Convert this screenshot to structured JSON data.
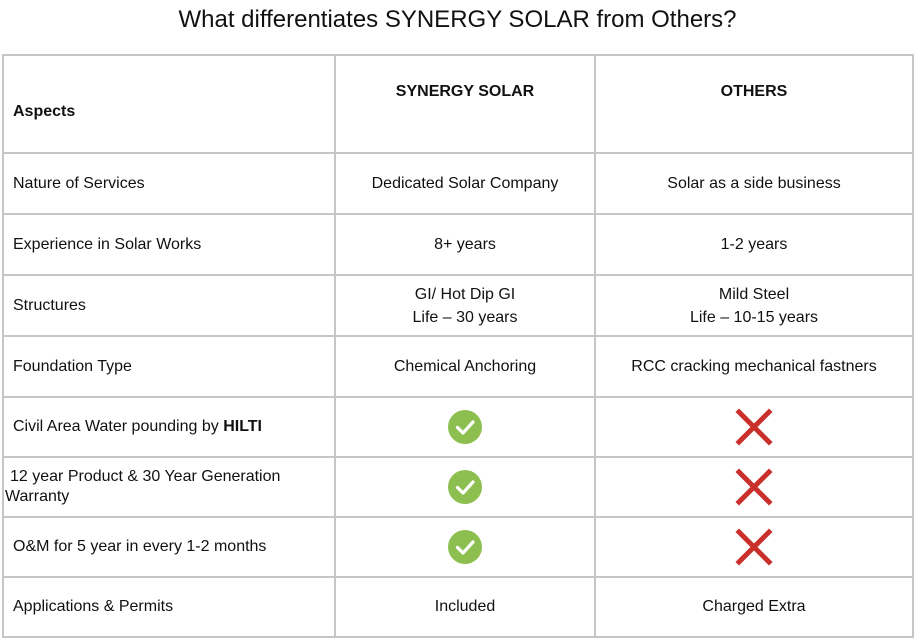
{
  "title": "What differentiates SYNERGY SOLAR from Others?",
  "headers": {
    "aspects": "Aspects",
    "synergy": "SYNERGY SOLAR",
    "others": "OTHERS"
  },
  "rows": [
    {
      "aspect": "Nature of Services",
      "synergy": "Dedicated Solar Company",
      "others": "Solar as a side business"
    },
    {
      "aspect": "Experience in Solar Works",
      "synergy": "8+ years",
      "others": "1-2 years"
    },
    {
      "aspect": "Structures",
      "synergy_line1": "GI/ Hot Dip GI",
      "synergy_line2": "Life – 30 years",
      "others_line1": "Mild Steel",
      "others_line2": "Life – 10-15 years"
    },
    {
      "aspect": "Foundation Type",
      "synergy": "Chemical Anchoring",
      "others": "RCC cracking mechanical fastners"
    },
    {
      "aspect_prefix": "Civil Area Water pounding by ",
      "aspect_bold": "HILTI",
      "synergy_icon": "green-check-icon",
      "others_icon": "red-cross-icon"
    },
    {
      "aspect_line1": "12 year Product & 30 Year Generation",
      "aspect_line2": "Warranty",
      "synergy_icon": "green-check-icon",
      "others_icon": "red-cross-icon"
    },
    {
      "aspect": "O&M for 5 year in every 1-2 months",
      "synergy_icon": "green-check-icon",
      "others_icon": "red-cross-icon"
    },
    {
      "aspect": "Applications & Permits",
      "synergy": "Included",
      "others": "Charged Extra"
    }
  ],
  "colors": {
    "check_green": "#8cbf4f",
    "cross_red": "#c9302c",
    "border": "#c6c6c6"
  }
}
